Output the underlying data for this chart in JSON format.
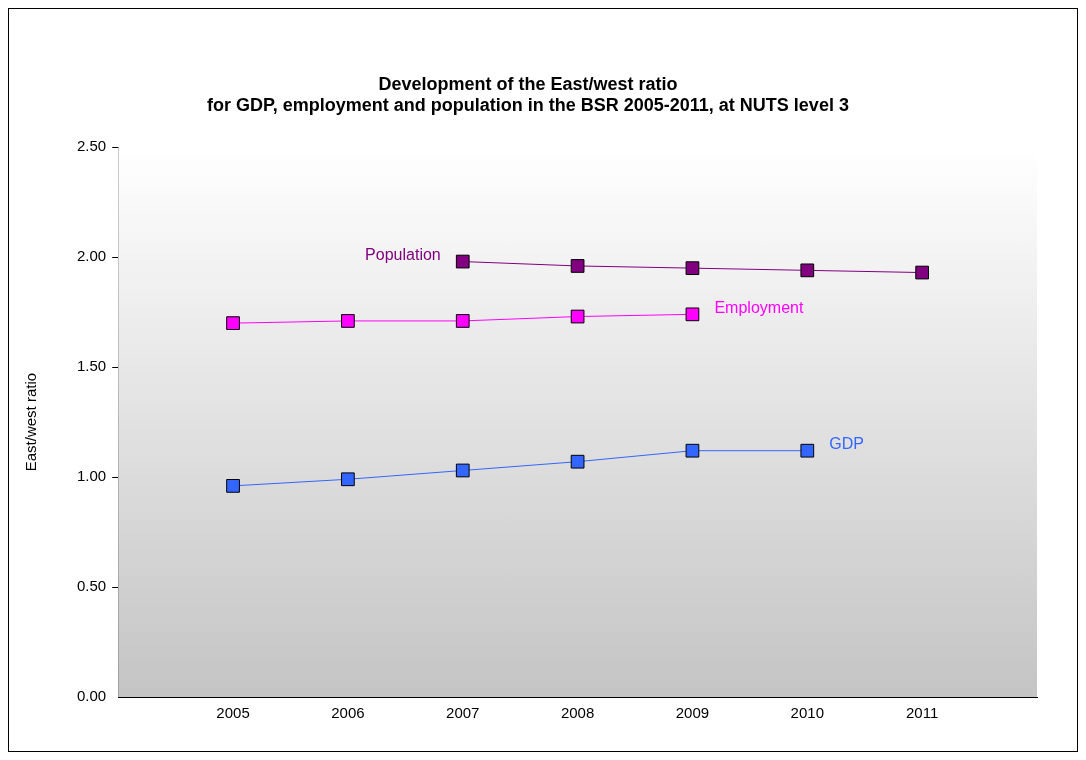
{
  "chart_data": {
    "type": "line",
    "title": "Development of the East/west ratio\nfor GDP, employment and population in the BSR 2005-2011, at NUTS level 3",
    "ylabel": "East/west ratio",
    "x": [
      2005,
      2006,
      2007,
      2008,
      2009,
      2010,
      2011
    ],
    "xlim": [
      2004,
      2012
    ],
    "xticks": [
      2005,
      2006,
      2007,
      2008,
      2009,
      2010,
      2011
    ],
    "ylim": [
      0,
      2.5
    ],
    "yticks": [
      {
        "value": 0,
        "label": "0.00"
      },
      {
        "value": 0.5,
        "label": "0.50"
      },
      {
        "value": 1,
        "label": "1.00"
      },
      {
        "value": 1.5,
        "label": "1.50"
      },
      {
        "value": 2,
        "label": "2.00"
      },
      {
        "value": 2.5,
        "label": "2.50"
      }
    ],
    "grid": false,
    "legend": false,
    "marker": "square",
    "line_style": "solid",
    "series": [
      {
        "name": "Population",
        "color": "#800080",
        "values": [
          null,
          null,
          1.98,
          1.96,
          1.95,
          1.94,
          1.93
        ]
      },
      {
        "name": "Employment",
        "color": "#ff00ff",
        "values": [
          1.7,
          1.71,
          1.71,
          1.73,
          1.74,
          null,
          null
        ]
      },
      {
        "name": "GDP",
        "color": "#3366ff",
        "values": [
          0.96,
          0.99,
          1.03,
          1.07,
          1.12,
          1.12,
          null
        ]
      }
    ]
  }
}
